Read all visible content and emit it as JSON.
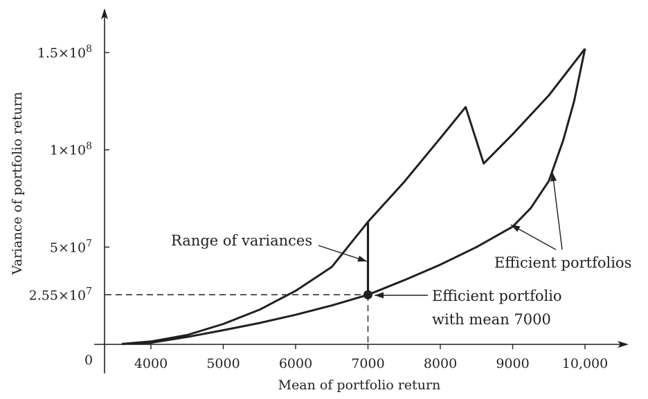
{
  "chart_data": {
    "type": "line",
    "xlabel": "Mean of portfolio return",
    "ylabel": "Variance of portfolio return",
    "xlim": [
      3300,
      10550
    ],
    "ylim": [
      -8000000,
      172000000
    ],
    "x_ticks": [
      {
        "value": 4000,
        "label": "4000"
      },
      {
        "value": 5000,
        "label": "5000"
      },
      {
        "value": 6000,
        "label": "6000"
      },
      {
        "value": 7000,
        "label": "7000"
      },
      {
        "value": 8000,
        "label": "8000"
      },
      {
        "value": 9000,
        "label": "9000"
      },
      {
        "value": 10000,
        "label": "10,000"
      }
    ],
    "y_ticks": [
      {
        "value": 25500000,
        "label": "2.55×10",
        "exp": "7"
      },
      {
        "value": 50000000,
        "label": "5×10",
        "exp": "7"
      },
      {
        "value": 100000000,
        "label": "1×10",
        "exp": "8"
      },
      {
        "value": 150000000,
        "label": "1.5×10",
        "exp": "8"
      }
    ],
    "origin_label": "0",
    "series": [
      {
        "values": [
          [
            3600,
            200000
          ],
          [
            4000,
            1500000
          ],
          [
            4500,
            4800000
          ],
          [
            5000,
            10500000
          ],
          [
            5500,
            17800000
          ],
          [
            6000,
            27500000
          ],
          [
            6500,
            39800000
          ],
          [
            7000,
            63000000
          ],
          [
            7500,
            83500000
          ],
          [
            8000,
            106000000
          ],
          [
            8350,
            122000000
          ],
          [
            8600,
            93000000
          ],
          [
            9000,
            108000000
          ],
          [
            9500,
            128000000
          ],
          [
            10000,
            152000000
          ]
        ]
      },
      {
        "values": [
          [
            3600,
            200000
          ],
          [
            4000,
            800000
          ],
          [
            4500,
            3800000
          ],
          [
            5000,
            7300000
          ],
          [
            5500,
            11000000
          ],
          [
            6000,
            15200000
          ],
          [
            6500,
            20000000
          ],
          [
            7000,
            25500000
          ],
          [
            7500,
            33000000
          ],
          [
            8000,
            41000000
          ],
          [
            8500,
            50000000
          ],
          [
            9000,
            60500000
          ],
          [
            9250,
            70000000
          ],
          [
            9500,
            84000000
          ],
          [
            9700,
            105000000
          ],
          [
            9850,
            125000000
          ],
          [
            10000,
            152000000
          ]
        ]
      }
    ],
    "range_bar": {
      "x": 7000,
      "y_low": 25500000,
      "y_high": 63000000
    },
    "marker": {
      "x": 7000,
      "y": 25500000
    },
    "annotations": [
      {
        "text": "Range of variances"
      },
      {
        "text": "Efficient portfolios"
      },
      {
        "text": "Efficient portfolio"
      },
      {
        "text": "with mean 7000"
      }
    ],
    "grid": false,
    "legend": "none"
  }
}
